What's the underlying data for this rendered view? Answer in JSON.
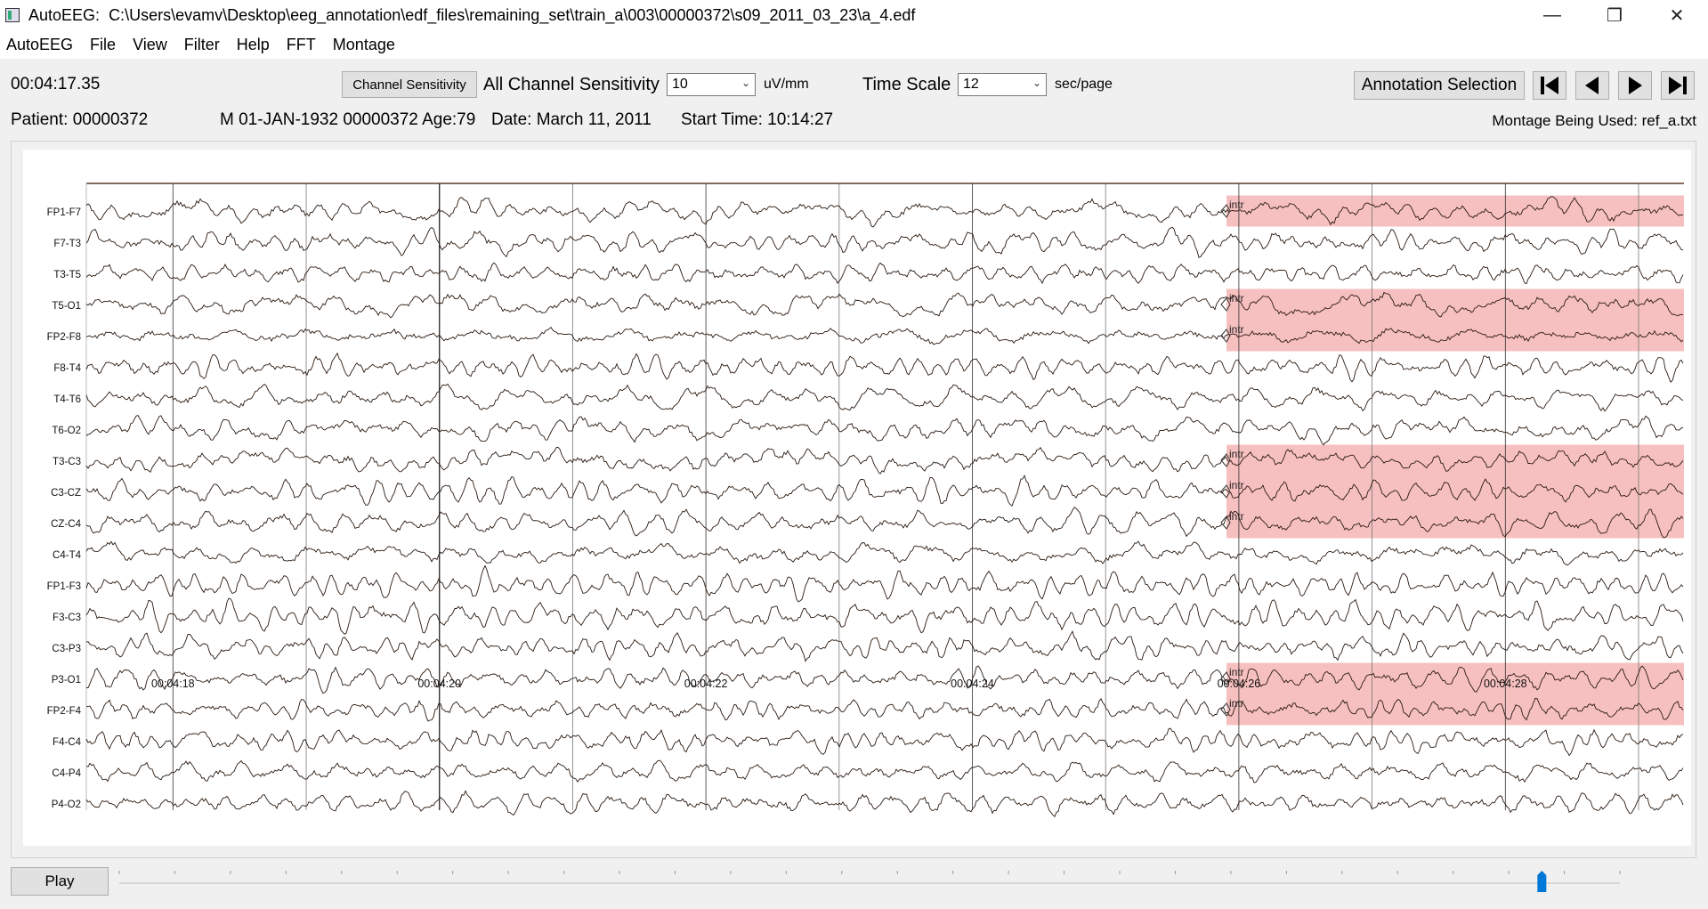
{
  "window": {
    "app_name": "AutoEEG:",
    "file_path": "C:\\Users\\evamv\\Desktop\\eeg_annotation\\edf_files\\remaining_set\\train_a\\003\\00000372\\s09_2011_03_23\\a_4.edf",
    "minimize_glyph": "—",
    "restore_glyph": "❐",
    "close_glyph": "✕"
  },
  "menu": [
    "AutoEEG",
    "File",
    "View",
    "Filter",
    "Help",
    "FFT",
    "Montage"
  ],
  "toolbar": {
    "current_time": "00:04:17.35",
    "channel_sensitivity_button": "Channel Sensitivity",
    "all_channel_sensitivity_label": "All Channel Sensitivity",
    "sensitivity_value": "10",
    "sensitivity_unit": "uV/mm",
    "time_scale_label": "Time Scale",
    "time_scale_value": "12",
    "time_scale_unit": "sec/page",
    "annotation_selection_button": "Annotation Selection",
    "nav_icons": [
      "skip-to-start-icon",
      "previous-page-icon",
      "next-page-icon",
      "skip-to-end-icon"
    ]
  },
  "patient_info": {
    "patient": "Patient: 00000372",
    "header": "M 01-JAN-1932 00000372 Age:79",
    "date": "Date: March 11, 2011",
    "start_time": "Start Time: 10:14:27",
    "montage": "Montage Being Used: ref_a.txt"
  },
  "eeg": {
    "channels": [
      "FP1-F7",
      "F7-T3",
      "T3-T5",
      "T5-O1",
      "FP2-F8",
      "F8-T4",
      "T4-T6",
      "T6-O2",
      "T3-C3",
      "C3-CZ",
      "CZ-C4",
      "C4-T4",
      "FP1-F3",
      "F3-C3",
      "C3-P3",
      "P3-O1",
      "FP2-F4",
      "F4-C4",
      "C4-P4",
      "P4-O2"
    ],
    "time_labels": [
      "00:04:18",
      "00:04:20",
      "00:04:22",
      "00:04:24",
      "00:04:26",
      "00:04:28"
    ],
    "annotation_label": "intr",
    "annotation_color": "#f7c0c0",
    "annotated_channels": [
      0,
      3,
      4,
      8,
      9,
      10,
      15,
      16
    ]
  },
  "playback": {
    "play_button": "Play",
    "position_fraction": 0.948
  }
}
